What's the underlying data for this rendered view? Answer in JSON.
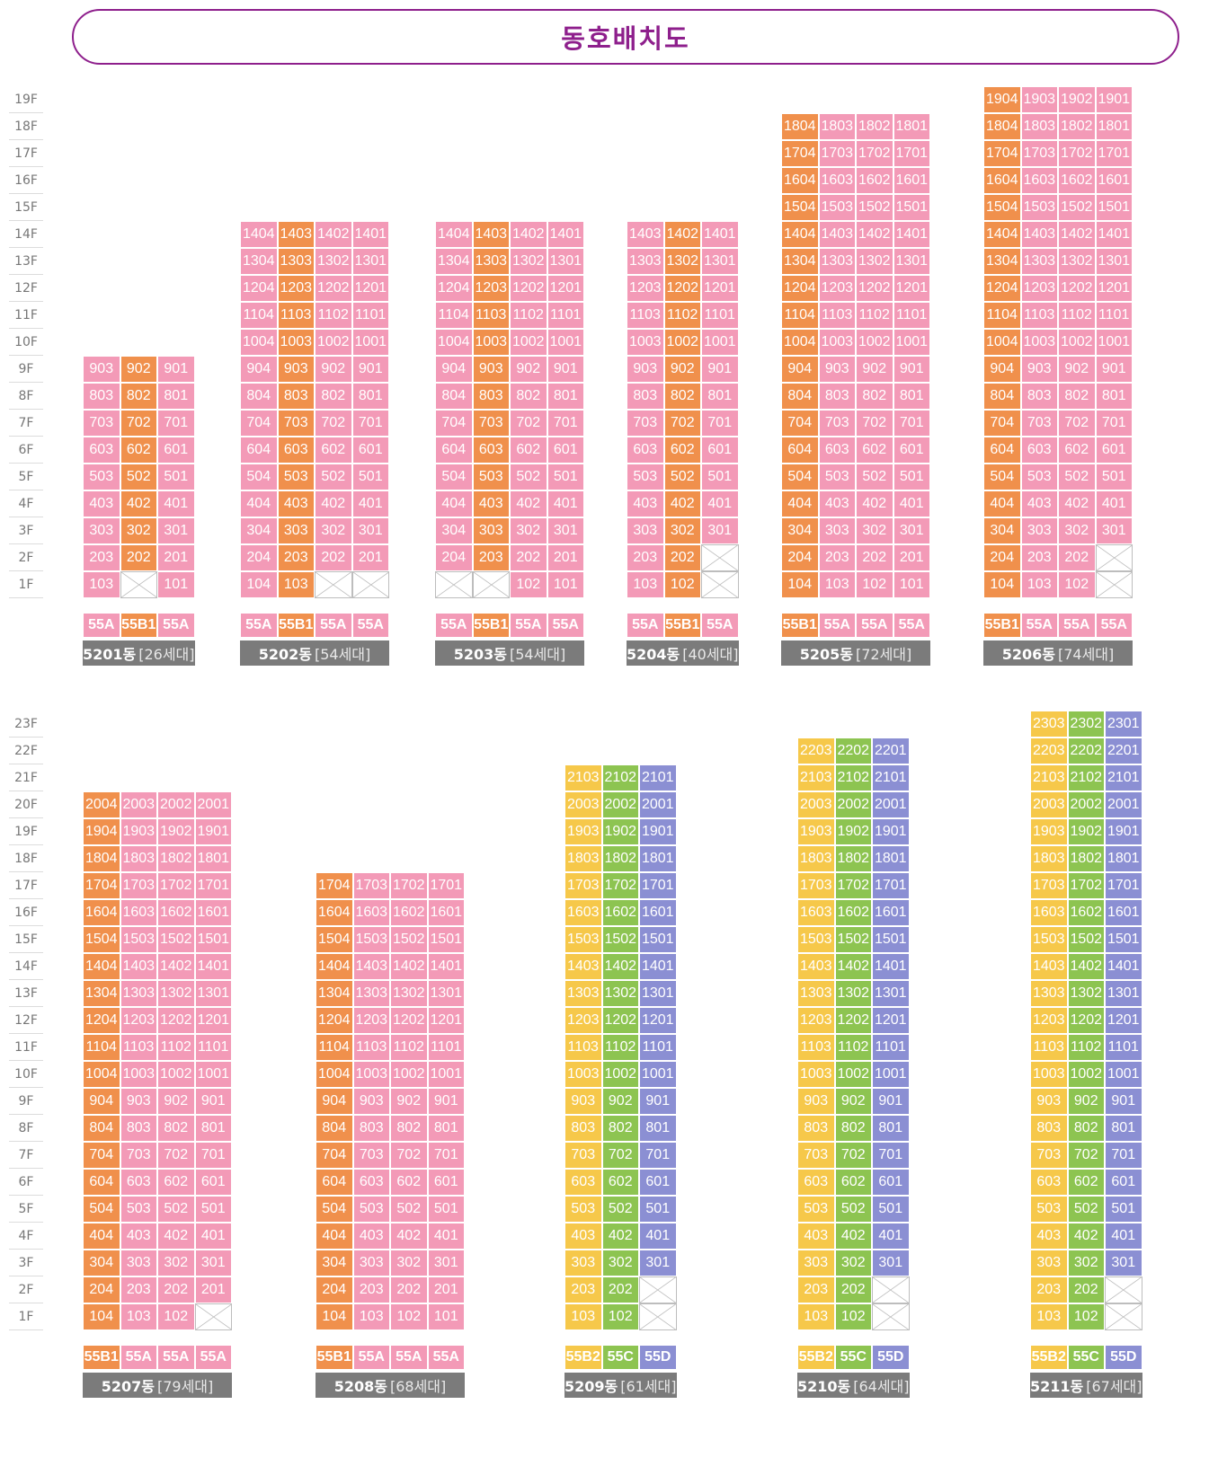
{
  "title": "동호배치도",
  "colors": {
    "pink": "#f39ab7",
    "orange": "#f0904c",
    "yellow": "#f6c84a",
    "green": "#8dc451",
    "blue": "#8b8fd3",
    "gray": "#7b7b7b"
  },
  "floor_labels_top": [
    "19F",
    "18F",
    "17F",
    "16F",
    "15F",
    "14F",
    "13F",
    "12F",
    "11F",
    "10F",
    "9F",
    "8F",
    "7F",
    "6F",
    "5F",
    "4F",
    "3F",
    "2F",
    "1F"
  ],
  "floor_labels_bottom": [
    "23F",
    "22F",
    "21F",
    "20F",
    "19F",
    "18F",
    "17F",
    "16F",
    "15F",
    "14F",
    "13F",
    "12F",
    "11F",
    "10F",
    "9F",
    "8F",
    "7F",
    "6F",
    "5F",
    "4F",
    "3F",
    "2F",
    "1F"
  ],
  "buildings": [
    {
      "id": "5201",
      "name": "5201동",
      "count": "[26세대]",
      "section": "top",
      "floors": 9,
      "lines": [
        {
          "line": "03",
          "color": "pink",
          "type": "55A"
        },
        {
          "line": "02",
          "color": "orange",
          "type": "55B1"
        },
        {
          "line": "01",
          "color": "pink",
          "type": "55A"
        }
      ],
      "empty": [
        "102"
      ]
    },
    {
      "id": "5202",
      "name": "5202동",
      "count": "[54세대]",
      "section": "top",
      "floors": 14,
      "lines": [
        {
          "line": "04",
          "color": "pink",
          "type": "55A"
        },
        {
          "line": "03",
          "color": "orange",
          "type": "55B1"
        },
        {
          "line": "02",
          "color": "pink",
          "type": "55A"
        },
        {
          "line": "01",
          "color": "pink",
          "type": "55A"
        }
      ],
      "empty": [
        "102",
        "101"
      ]
    },
    {
      "id": "5203",
      "name": "5203동",
      "count": "[54세대]",
      "section": "top",
      "floors": 14,
      "lines": [
        {
          "line": "04",
          "color": "pink",
          "type": "55A"
        },
        {
          "line": "03",
          "color": "orange",
          "type": "55B1"
        },
        {
          "line": "02",
          "color": "pink",
          "type": "55A"
        },
        {
          "line": "01",
          "color": "pink",
          "type": "55A"
        }
      ],
      "empty": [
        "104",
        "103"
      ]
    },
    {
      "id": "5204",
      "name": "5204동",
      "count": "[40세대]",
      "section": "top",
      "floors": 14,
      "lines": [
        {
          "line": "03",
          "color": "pink",
          "type": "55A"
        },
        {
          "line": "02",
          "color": "orange",
          "type": "55B1"
        },
        {
          "line": "01",
          "color": "pink",
          "type": "55A"
        }
      ],
      "empty": [
        "201",
        "101"
      ]
    },
    {
      "id": "5205",
      "name": "5205동",
      "count": "[72세대]",
      "section": "top",
      "floors": 18,
      "lines": [
        {
          "line": "04",
          "color": "orange",
          "type": "55B1"
        },
        {
          "line": "03",
          "color": "pink",
          "type": "55A"
        },
        {
          "line": "02",
          "color": "pink",
          "type": "55A"
        },
        {
          "line": "01",
          "color": "pink",
          "type": "55A"
        }
      ],
      "empty": []
    },
    {
      "id": "5206",
      "name": "5206동",
      "count": "[74세대]",
      "section": "top",
      "floors": 19,
      "lines": [
        {
          "line": "04",
          "color": "orange",
          "type": "55B1"
        },
        {
          "line": "03",
          "color": "pink",
          "type": "55A"
        },
        {
          "line": "02",
          "color": "pink",
          "type": "55A"
        },
        {
          "line": "01",
          "color": "pink",
          "type": "55A"
        }
      ],
      "empty": [
        "201",
        "101"
      ]
    },
    {
      "id": "5207",
      "name": "5207동",
      "count": "[79세대]",
      "section": "bottom",
      "floors": 20,
      "lines": [
        {
          "line": "04",
          "color": "orange",
          "type": "55B1"
        },
        {
          "line": "03",
          "color": "pink",
          "type": "55A"
        },
        {
          "line": "02",
          "color": "pink",
          "type": "55A"
        },
        {
          "line": "01",
          "color": "pink",
          "type": "55A"
        }
      ],
      "empty": [
        "101"
      ]
    },
    {
      "id": "5208",
      "name": "5208동",
      "count": "[68세대]",
      "section": "bottom",
      "floors": 17,
      "lines": [
        {
          "line": "04",
          "color": "orange",
          "type": "55B1"
        },
        {
          "line": "03",
          "color": "pink",
          "type": "55A"
        },
        {
          "line": "02",
          "color": "pink",
          "type": "55A"
        },
        {
          "line": "01",
          "color": "pink",
          "type": "55A"
        }
      ],
      "empty": []
    },
    {
      "id": "5209",
      "name": "5209동",
      "count": "[61세대]",
      "section": "bottom",
      "floors": 21,
      "lines": [
        {
          "line": "03",
          "color": "yellow",
          "type": "55B2"
        },
        {
          "line": "02",
          "color": "green",
          "type": "55C"
        },
        {
          "line": "01",
          "color": "blue",
          "type": "55D"
        }
      ],
      "empty": [
        "201",
        "101"
      ]
    },
    {
      "id": "5210",
      "name": "5210동",
      "count": "[64세대]",
      "section": "bottom",
      "floors": 22,
      "lines": [
        {
          "line": "03",
          "color": "yellow",
          "type": "55B2"
        },
        {
          "line": "02",
          "color": "green",
          "type": "55C"
        },
        {
          "line": "01",
          "color": "blue",
          "type": "55D"
        }
      ],
      "empty": [
        "201",
        "101"
      ]
    },
    {
      "id": "5211",
      "name": "5211동",
      "count": "[67세대]",
      "section": "bottom",
      "floors": 23,
      "lines": [
        {
          "line": "03",
          "color": "yellow",
          "type": "55B2"
        },
        {
          "line": "02",
          "color": "green",
          "type": "55C"
        },
        {
          "line": "01",
          "color": "blue",
          "type": "55D"
        }
      ],
      "empty": [
        "201",
        "101"
      ]
    }
  ]
}
